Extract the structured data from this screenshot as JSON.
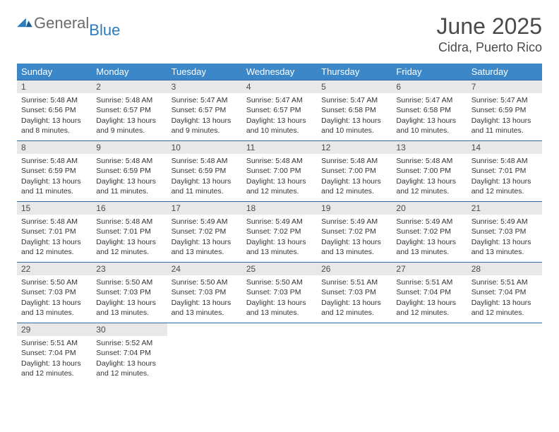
{
  "logo": {
    "part1": "General",
    "part2": "Blue"
  },
  "title": "June 2025",
  "location": "Cidra, Puerto Rico",
  "colors": {
    "header_bg": "#3b87c8",
    "header_text": "#ffffff",
    "border": "#2b6aa3",
    "daynum_bg": "#e8e8e8",
    "text": "#333333",
    "title_color": "#4a4a4a",
    "logo_gray": "#6b6b6b",
    "logo_blue": "#2b7bbf"
  },
  "weekdays": [
    "Sunday",
    "Monday",
    "Tuesday",
    "Wednesday",
    "Thursday",
    "Friday",
    "Saturday"
  ],
  "weeks": [
    [
      {
        "n": "1",
        "sr": "5:48 AM",
        "ss": "6:56 PM",
        "dl": "13 hours and 8 minutes."
      },
      {
        "n": "2",
        "sr": "5:48 AM",
        "ss": "6:57 PM",
        "dl": "13 hours and 9 minutes."
      },
      {
        "n": "3",
        "sr": "5:47 AM",
        "ss": "6:57 PM",
        "dl": "13 hours and 9 minutes."
      },
      {
        "n": "4",
        "sr": "5:47 AM",
        "ss": "6:57 PM",
        "dl": "13 hours and 10 minutes."
      },
      {
        "n": "5",
        "sr": "5:47 AM",
        "ss": "6:58 PM",
        "dl": "13 hours and 10 minutes."
      },
      {
        "n": "6",
        "sr": "5:47 AM",
        "ss": "6:58 PM",
        "dl": "13 hours and 10 minutes."
      },
      {
        "n": "7",
        "sr": "5:47 AM",
        "ss": "6:59 PM",
        "dl": "13 hours and 11 minutes."
      }
    ],
    [
      {
        "n": "8",
        "sr": "5:48 AM",
        "ss": "6:59 PM",
        "dl": "13 hours and 11 minutes."
      },
      {
        "n": "9",
        "sr": "5:48 AM",
        "ss": "6:59 PM",
        "dl": "13 hours and 11 minutes."
      },
      {
        "n": "10",
        "sr": "5:48 AM",
        "ss": "6:59 PM",
        "dl": "13 hours and 11 minutes."
      },
      {
        "n": "11",
        "sr": "5:48 AM",
        "ss": "7:00 PM",
        "dl": "13 hours and 12 minutes."
      },
      {
        "n": "12",
        "sr": "5:48 AM",
        "ss": "7:00 PM",
        "dl": "13 hours and 12 minutes."
      },
      {
        "n": "13",
        "sr": "5:48 AM",
        "ss": "7:00 PM",
        "dl": "13 hours and 12 minutes."
      },
      {
        "n": "14",
        "sr": "5:48 AM",
        "ss": "7:01 PM",
        "dl": "13 hours and 12 minutes."
      }
    ],
    [
      {
        "n": "15",
        "sr": "5:48 AM",
        "ss": "7:01 PM",
        "dl": "13 hours and 12 minutes."
      },
      {
        "n": "16",
        "sr": "5:48 AM",
        "ss": "7:01 PM",
        "dl": "13 hours and 12 minutes."
      },
      {
        "n": "17",
        "sr": "5:49 AM",
        "ss": "7:02 PM",
        "dl": "13 hours and 13 minutes."
      },
      {
        "n": "18",
        "sr": "5:49 AM",
        "ss": "7:02 PM",
        "dl": "13 hours and 13 minutes."
      },
      {
        "n": "19",
        "sr": "5:49 AM",
        "ss": "7:02 PM",
        "dl": "13 hours and 13 minutes."
      },
      {
        "n": "20",
        "sr": "5:49 AM",
        "ss": "7:02 PM",
        "dl": "13 hours and 13 minutes."
      },
      {
        "n": "21",
        "sr": "5:49 AM",
        "ss": "7:03 PM",
        "dl": "13 hours and 13 minutes."
      }
    ],
    [
      {
        "n": "22",
        "sr": "5:50 AM",
        "ss": "7:03 PM",
        "dl": "13 hours and 13 minutes."
      },
      {
        "n": "23",
        "sr": "5:50 AM",
        "ss": "7:03 PM",
        "dl": "13 hours and 13 minutes."
      },
      {
        "n": "24",
        "sr": "5:50 AM",
        "ss": "7:03 PM",
        "dl": "13 hours and 13 minutes."
      },
      {
        "n": "25",
        "sr": "5:50 AM",
        "ss": "7:03 PM",
        "dl": "13 hours and 13 minutes."
      },
      {
        "n": "26",
        "sr": "5:51 AM",
        "ss": "7:03 PM",
        "dl": "13 hours and 12 minutes."
      },
      {
        "n": "27",
        "sr": "5:51 AM",
        "ss": "7:04 PM",
        "dl": "13 hours and 12 minutes."
      },
      {
        "n": "28",
        "sr": "5:51 AM",
        "ss": "7:04 PM",
        "dl": "13 hours and 12 minutes."
      }
    ],
    [
      {
        "n": "29",
        "sr": "5:51 AM",
        "ss": "7:04 PM",
        "dl": "13 hours and 12 minutes."
      },
      {
        "n": "30",
        "sr": "5:52 AM",
        "ss": "7:04 PM",
        "dl": "13 hours and 12 minutes."
      },
      null,
      null,
      null,
      null,
      null
    ]
  ],
  "labels": {
    "sunrise": "Sunrise:",
    "sunset": "Sunset:",
    "daylight": "Daylight:"
  }
}
